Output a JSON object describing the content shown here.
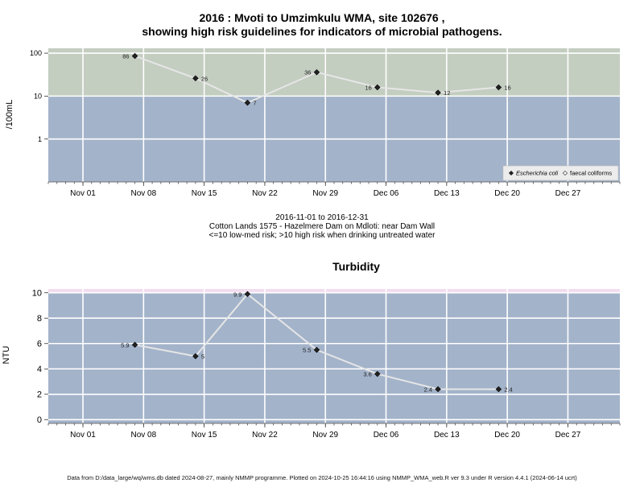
{
  "page": {
    "title_line1": "2016 : Mvoti to Umzimkulu WMA, site 102676 ,",
    "title_line2": "showing high risk guidelines for indicators of microbial pathogens.",
    "caption_line1": "2016-11-01 to 2016-12-31",
    "caption_line2": "Cotton Lands 1575 - Hazelmere Dam on Mdloti: near Dam Wall",
    "caption_line3": "<=10 low-med risk; >10 high risk when drinking untreated water",
    "footer": "Data from D:/data_large/wq/wms.db dated 2024-08-27, mainly NMMP programme. Plotted on 2024-10-25 16:44:16 using NMMP_WMA_web.R ver 9.3 under R version 4.4.1 (2024-06-14 ucrt)"
  },
  "chart_data": [
    {
      "type": "line",
      "title": "",
      "ylabel": "/100mL",
      "yscale": "log",
      "ylim": [
        0.1,
        130
      ],
      "yticks": [
        1,
        10,
        100
      ],
      "ytick_labels": [
        "1",
        "10",
        "100"
      ],
      "xlim": [
        "2016-10-28",
        "2017-01-02"
      ],
      "xticks": [
        "2016-11-01",
        "2016-11-08",
        "2016-11-15",
        "2016-11-22",
        "2016-11-29",
        "2016-12-06",
        "2016-12-13",
        "2016-12-20",
        "2016-12-27"
      ],
      "xtick_labels": [
        "Nov 01",
        "Nov 08",
        "Nov 15",
        "Nov 22",
        "Nov 29",
        "Dec 06",
        "Dec 13",
        "Dec 20",
        "Dec 27"
      ],
      "bands": [
        {
          "from": 10,
          "to": 130,
          "color": "#c3cdc0",
          "meaning": "high risk"
        },
        {
          "from": 0.1,
          "to": 10,
          "color": "#a3b3ca",
          "meaning": "low-med risk"
        }
      ],
      "grid": true,
      "legend_position": "bottom-right",
      "series": [
        {
          "name": "Escherichia coli",
          "marker": "filled-diamond",
          "x": [
            "2016-11-07",
            "2016-11-14",
            "2016-11-20",
            "2016-11-28",
            "2016-12-05",
            "2016-12-12",
            "2016-12-19"
          ],
          "y": [
            86,
            26,
            7,
            36,
            16,
            12,
            16
          ],
          "labels": [
            "86",
            "26",
            "7",
            "36",
            "16",
            "12",
            "16"
          ],
          "label_side": [
            "left",
            "right",
            "right",
            "left",
            "left",
            "right",
            "right"
          ]
        },
        {
          "name": "faecal coliforms",
          "marker": "open-diamond",
          "x": [],
          "y": []
        }
      ]
    },
    {
      "type": "line",
      "title": "Turbidity",
      "ylabel": "NTU",
      "yscale": "linear",
      "ylim": [
        -0.3,
        10.3
      ],
      "yticks": [
        0,
        2,
        4,
        6,
        8,
        10
      ],
      "ytick_labels": [
        "0",
        "2",
        "4",
        "6",
        "8",
        "10"
      ],
      "xlim": [
        "2016-10-28",
        "2017-01-02"
      ],
      "xticks": [
        "2016-11-01",
        "2016-11-08",
        "2016-11-15",
        "2016-11-22",
        "2016-11-29",
        "2016-12-06",
        "2016-12-13",
        "2016-12-20",
        "2016-12-27"
      ],
      "xtick_labels": [
        "Nov 01",
        "Nov 08",
        "Nov 15",
        "Nov 22",
        "Nov 29",
        "Dec 06",
        "Dec 13",
        "Dec 20",
        "Dec 27"
      ],
      "bands": [
        {
          "from": -0.3,
          "to": 10,
          "color": "#a3b3ca"
        },
        {
          "from": 10,
          "to": 10.3,
          "color": "#f2dcef"
        }
      ],
      "grid": true,
      "series": [
        {
          "name": "",
          "marker": "filled-diamond",
          "x": [
            "2016-11-07",
            "2016-11-14",
            "2016-11-20",
            "2016-11-28",
            "2016-12-05",
            "2016-12-12",
            "2016-12-19"
          ],
          "y": [
            5.9,
            5,
            9.9,
            5.5,
            3.6,
            2.4,
            2.4
          ],
          "labels": [
            "5.9",
            "5",
            "9.9",
            "5.5",
            "3.6",
            "2.4",
            "2.4"
          ],
          "label_side": [
            "left",
            "right",
            "left",
            "left",
            "left",
            "left",
            "right"
          ]
        }
      ]
    }
  ]
}
